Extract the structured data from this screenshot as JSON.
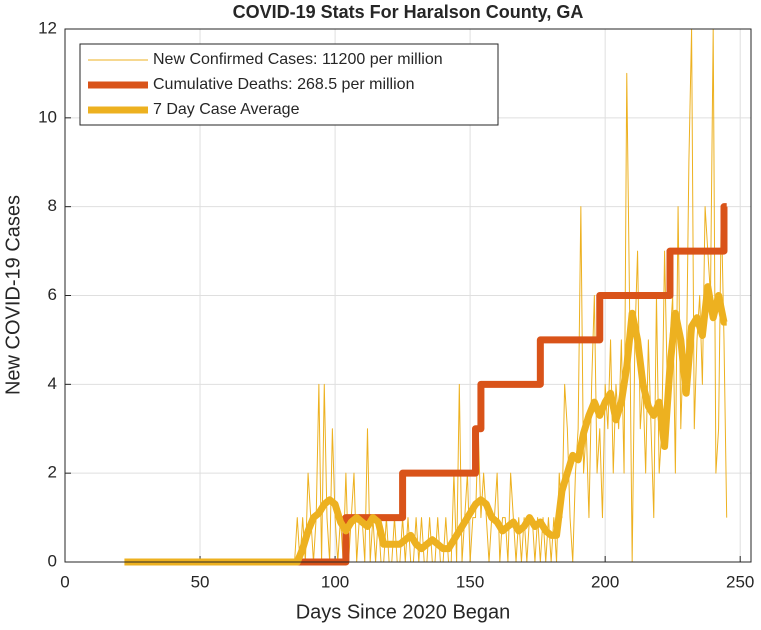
{
  "chart_data": {
    "type": "line",
    "title": "COVID-19 Stats For Haralson County, GA",
    "xlabel": "Days Since 2020 Began",
    "ylabel": "New COVID-19 Cases",
    "xlim": [
      0,
      254
    ],
    "xticks": [
      0,
      50,
      100,
      150,
      200,
      250
    ],
    "ylim": [
      0,
      12
    ],
    "yticks": [
      0,
      2,
      4,
      6,
      8,
      10,
      12
    ],
    "grid": true,
    "legend": "upper left",
    "series": [
      {
        "name": "New Confirmed Cases: 11200 per million",
        "color": "#EDB120",
        "width": 1,
        "x": [
          22,
          85,
          86,
          87,
          88,
          89,
          90,
          91,
          92,
          93,
          94,
          95,
          96,
          97,
          98,
          99,
          100,
          101,
          102,
          103,
          104,
          105,
          106,
          107,
          108,
          109,
          110,
          111,
          112,
          113,
          114,
          115,
          116,
          117,
          118,
          119,
          120,
          121,
          122,
          123,
          124,
          125,
          126,
          127,
          128,
          129,
          130,
          131,
          132,
          133,
          134,
          135,
          136,
          137,
          138,
          139,
          140,
          141,
          142,
          143,
          144,
          145,
          146,
          147,
          148,
          149,
          150,
          151,
          152,
          153,
          154,
          155,
          156,
          157,
          158,
          159,
          160,
          161,
          162,
          163,
          164,
          165,
          166,
          167,
          168,
          169,
          170,
          171,
          172,
          173,
          174,
          175,
          176,
          177,
          178,
          179,
          180,
          181,
          182,
          183,
          184,
          185,
          186,
          187,
          188,
          189,
          190,
          191,
          192,
          193,
          194,
          195,
          196,
          197,
          198,
          199,
          200,
          201,
          202,
          203,
          204,
          205,
          206,
          207,
          208,
          209,
          210,
          211,
          212,
          213,
          214,
          215,
          216,
          217,
          218,
          219,
          220,
          221,
          222,
          223,
          224,
          225,
          226,
          227,
          228,
          229,
          230,
          231,
          232,
          233,
          234,
          235,
          236,
          237,
          238,
          239,
          240,
          241,
          242,
          243,
          244,
          245
        ],
        "values": [
          0,
          0,
          1,
          0,
          1,
          0,
          2,
          1,
          0,
          1,
          4,
          0,
          4,
          1,
          0,
          3,
          1,
          0,
          1,
          0,
          2,
          0,
          1,
          2,
          0,
          1,
          1,
          0,
          3,
          0,
          1,
          0,
          1,
          0,
          0,
          1,
          0,
          0,
          1,
          0,
          0,
          1,
          0,
          1,
          0,
          0,
          1,
          0,
          1,
          0,
          0,
          1,
          0,
          0,
          1,
          0,
          0,
          1,
          0,
          0,
          2,
          0,
          4,
          0,
          1,
          2,
          0,
          1,
          1,
          3,
          1,
          2,
          1,
          0,
          1,
          1,
          2,
          0,
          1,
          1,
          0,
          2,
          1,
          0,
          1,
          0,
          1,
          0,
          1,
          1,
          0,
          1,
          0,
          1,
          0,
          1,
          0,
          1,
          0,
          2,
          1,
          4,
          3,
          1,
          0,
          2,
          3,
          8,
          2,
          3,
          1,
          4,
          6,
          2,
          3,
          1,
          4,
          3,
          5,
          2,
          4,
          3,
          5,
          2,
          11,
          6,
          0,
          5,
          7,
          3,
          4,
          2,
          5,
          3,
          1,
          6,
          2,
          3,
          7,
          4,
          5,
          6,
          2,
          8,
          3,
          5,
          4,
          9,
          12,
          3,
          5,
          6,
          4,
          8,
          7,
          6,
          12,
          2,
          3,
          8,
          5,
          1
        ]
      },
      {
        "name": "Cumulative Deaths: 268.5 per million",
        "color": "#D95319",
        "width": 7,
        "x": [
          85,
          104,
          104,
          125,
          125,
          152,
          152,
          154,
          154,
          176,
          176,
          198,
          198,
          224,
          224,
          244,
          244,
          245
        ],
        "values": [
          0,
          0,
          1,
          1,
          2,
          2,
          3,
          3,
          4,
          4,
          5,
          5,
          6,
          6,
          7,
          7,
          8,
          8
        ]
      },
      {
        "name": "7 Day Case Average",
        "color": "#EDB120",
        "width": 7,
        "x": [
          22,
          85,
          86,
          88,
          90,
          92,
          94,
          96,
          98,
          100,
          102,
          104,
          106,
          108,
          110,
          112,
          114,
          116,
          118,
          120,
          122,
          124,
          126,
          128,
          130,
          132,
          134,
          136,
          138,
          140,
          142,
          144,
          146,
          148,
          150,
          152,
          154,
          156,
          158,
          160,
          162,
          164,
          166,
          168,
          170,
          172,
          174,
          176,
          178,
          180,
          182,
          184,
          186,
          188,
          190,
          192,
          194,
          196,
          198,
          200,
          202,
          204,
          206,
          208,
          210,
          212,
          214,
          216,
          218,
          220,
          222,
          224,
          226,
          228,
          230,
          232,
          234,
          236,
          238,
          240,
          242,
          244,
          245
        ],
        "values": [
          0,
          0,
          0,
          0.3,
          0.7,
          1.0,
          1.1,
          1.3,
          1.4,
          1.3,
          0.9,
          0.7,
          0.9,
          1.0,
          0.9,
          0.8,
          1.0,
          0.9,
          0.4,
          0.4,
          0.4,
          0.4,
          0.5,
          0.6,
          0.4,
          0.3,
          0.4,
          0.5,
          0.4,
          0.3,
          0.3,
          0.5,
          0.7,
          0.9,
          1.1,
          1.3,
          1.4,
          1.3,
          1.0,
          0.9,
          0.7,
          0.8,
          0.9,
          0.7,
          0.8,
          1.0,
          0.8,
          0.9,
          0.7,
          0.6,
          0.6,
          1.6,
          2.0,
          2.4,
          2.3,
          2.9,
          3.3,
          3.6,
          3.3,
          3.6,
          3.8,
          3.2,
          3.6,
          4.4,
          5.6,
          5.0,
          4.0,
          3.5,
          3.3,
          3.6,
          2.6,
          4.4,
          5.6,
          5.0,
          3.8,
          5.3,
          5.5,
          5.1,
          6.2,
          5.5,
          6.0,
          5.4,
          5.4
        ]
      }
    ]
  }
}
